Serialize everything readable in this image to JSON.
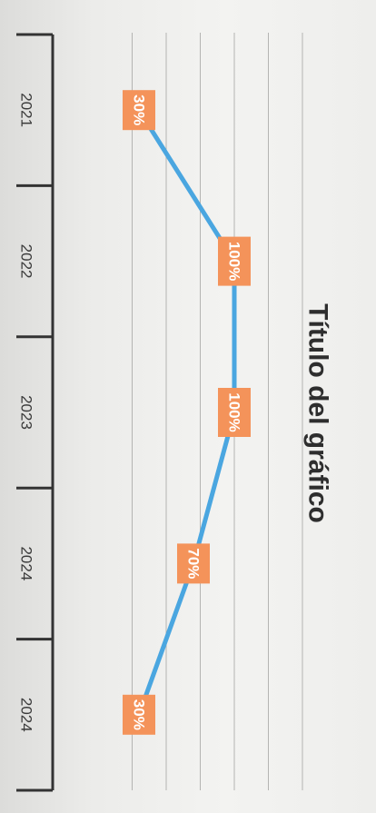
{
  "chart_data": {
    "type": "line",
    "title": "Título del gráfico",
    "categories": [
      "2021",
      "2022",
      "2023",
      "2024",
      "2024"
    ],
    "values": [
      30,
      100,
      100,
      70,
      30
    ],
    "data_labels": [
      "30%",
      "100%",
      "100%",
      "70%",
      "30%"
    ],
    "ylim": [
      0,
      200
    ],
    "gridlines": true,
    "orientation": "rotated-90-clockwise",
    "colors": {
      "line": "#4aa6e0",
      "marker": "#5aa8dc",
      "label_box": "#f4935a",
      "label_text": "#ffffff",
      "axis": "#333333",
      "grid": "#b4b4b2",
      "text": "#3a3a3a"
    }
  }
}
